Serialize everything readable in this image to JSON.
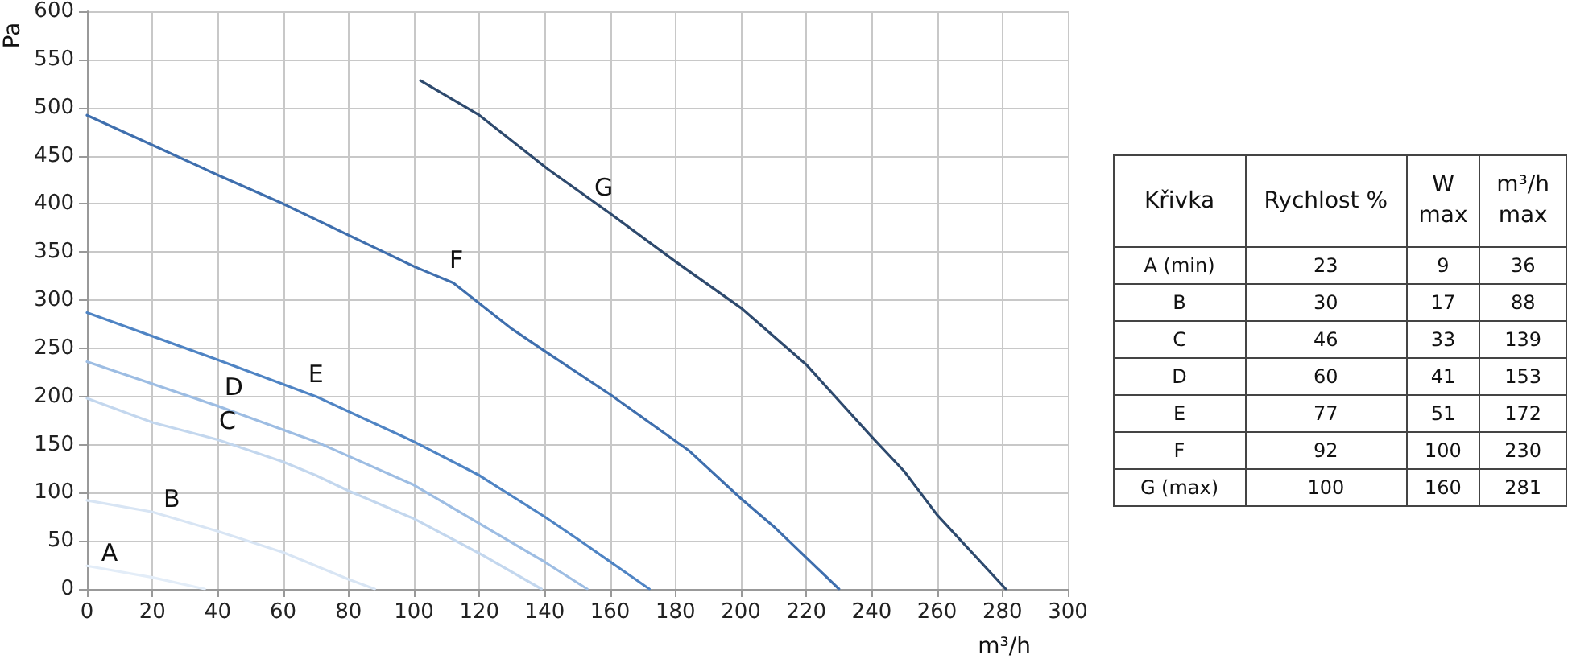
{
  "chart_data": [
    {
      "type": "line",
      "xlabel": "m³/h",
      "ylabel": "Pa",
      "xlim": [
        0,
        300
      ],
      "xticks": [
        0,
        20,
        40,
        60,
        80,
        100,
        120,
        140,
        160,
        180,
        200,
        220,
        240,
        260,
        280,
        300
      ],
      "ylim": [
        0,
        600
      ],
      "yticks": [
        0,
        50,
        100,
        150,
        200,
        250,
        300,
        350,
        400,
        450,
        500,
        550,
        600
      ],
      "grid": true,
      "marker": "none",
      "line_style": "solid",
      "series": [
        {
          "name": "A",
          "color": "#e3edf8",
          "x": [
            0,
            20,
            36
          ],
          "values": [
            24,
            12,
            0
          ]
        },
        {
          "name": "B",
          "color": "#d8e5f4",
          "x": [
            0,
            20,
            40,
            60,
            80,
            88
          ],
          "values": [
            92,
            80,
            60,
            38,
            10,
            0
          ]
        },
        {
          "name": "C",
          "color": "#c3d7ee",
          "x": [
            0,
            20,
            40,
            60,
            70,
            80,
            100,
            120,
            139
          ],
          "values": [
            198,
            173,
            155,
            132,
            118,
            102,
            73,
            37,
            0
          ]
        },
        {
          "name": "D",
          "color": "#9dbde3",
          "x": [
            0,
            40,
            70,
            80,
            100,
            120,
            140,
            153
          ],
          "values": [
            236,
            190,
            153,
            138,
            108,
            68,
            28,
            0
          ]
        },
        {
          "name": "E",
          "color": "#4f84c4",
          "x": [
            0,
            40,
            70,
            100,
            120,
            140,
            150,
            172
          ],
          "values": [
            287,
            238,
            200,
            153,
            118,
            75,
            52,
            0
          ]
        },
        {
          "name": "F",
          "color": "#3f6fae",
          "x": [
            0,
            40,
            60,
            100,
            112,
            130,
            140,
            160,
            184,
            200,
            210,
            230
          ],
          "values": [
            492,
            430,
            400,
            335,
            318,
            270,
            247,
            202,
            144,
            94,
            65,
            0
          ]
        },
        {
          "name": "G",
          "color": "#2e4a6e",
          "x": [
            102,
            120,
            141,
            160,
            180,
            200,
            220,
            240,
            250,
            260,
            281
          ],
          "values": [
            528,
            492,
            436,
            390,
            340,
            292,
            233,
            158,
            122,
            77,
            0
          ]
        }
      ]
    },
    {
      "type": "other",
      "categories": [
        "Křivka",
        "Rychlost %",
        "W max",
        "m³/h max"
      ],
      "cell_labels": [
        [
          "A (min)",
          "23",
          "9",
          "36"
        ],
        [
          "B",
          "30",
          "17",
          "88"
        ],
        [
          "C",
          "46",
          "33",
          "139"
        ],
        [
          "D",
          "60",
          "41",
          "153"
        ],
        [
          "E",
          "77",
          "51",
          "172"
        ],
        [
          "F",
          "92",
          "100",
          "230"
        ],
        [
          "G (max)",
          "100",
          "160",
          "281"
        ]
      ]
    }
  ]
}
